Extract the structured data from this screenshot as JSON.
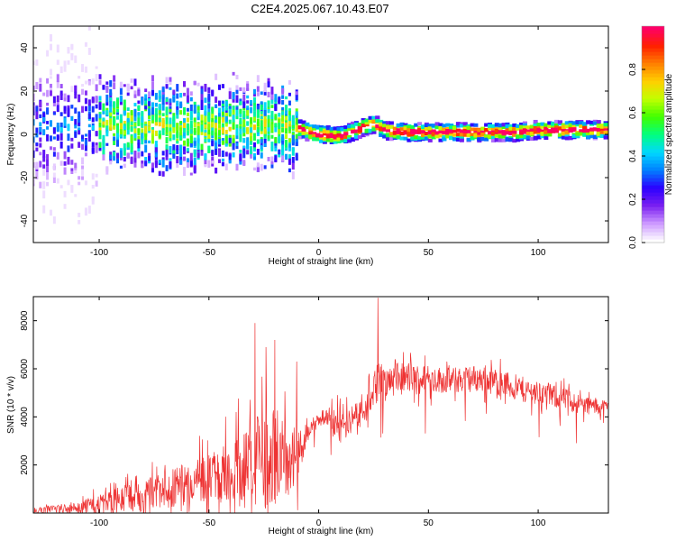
{
  "title": "C2E4.2025.067.10.43.E07",
  "chart_data": [
    {
      "type": "heatmap",
      "name": "spectrogram",
      "xlabel": "Height of straight line (km)",
      "ylabel": "Frequency (Hz)",
      "xlim": [
        -130,
        132
      ],
      "ylim": [
        -50,
        50
      ],
      "x_ticks": [
        -100,
        -50,
        0,
        50,
        100
      ],
      "y_ticks": [
        -40,
        -20,
        0,
        20,
        40
      ],
      "colorbar": {
        "label": "Normalized spectral amplitude",
        "range": [
          0,
          1
        ],
        "ticks": [
          0.0,
          0.2,
          0.4,
          0.6,
          0.8
        ],
        "colors": [
          "#ffffff",
          "#cc99ff",
          "#7a1ff0",
          "#2b00ff",
          "#0080ff",
          "#00d8ff",
          "#00ff80",
          "#40ff00",
          "#c0ff00",
          "#ffd000",
          "#ff8000",
          "#ff2000",
          "#ff0066"
        ]
      },
      "ridge": {
        "x": [
          -125,
          -100,
          -80,
          -60,
          -40,
          -20,
          -10,
          0,
          10,
          20,
          25,
          30,
          40,
          60,
          80,
          90,
          100,
          132
        ],
        "freq": [
          3,
          4,
          4,
          3,
          4,
          4,
          3,
          0,
          -1,
          3,
          5,
          2,
          1,
          1,
          1,
          1,
          2,
          2
        ]
      }
    },
    {
      "type": "line",
      "name": "snr",
      "xlabel": "Height of straight line (km)",
      "ylabel": "SNR (10 * v/v)",
      "xlim": [
        -130,
        132
      ],
      "ylim": [
        0,
        9000
      ],
      "x_ticks": [
        -100,
        -50,
        0,
        50,
        100
      ],
      "y_ticks": [
        2000,
        4000,
        6000,
        8000
      ],
      "color": "#ee3333",
      "envelope": {
        "x": [
          -130,
          -110,
          -100,
          -90,
          -80,
          -70,
          -60,
          -50,
          -40,
          -30,
          -20,
          -15,
          -10,
          -5,
          0,
          5,
          10,
          15,
          20,
          25,
          30,
          40,
          50,
          60,
          70,
          80,
          90,
          100,
          110,
          120,
          132
        ],
        "mean": [
          100,
          200,
          350,
          550,
          800,
          1000,
          1200,
          1450,
          1700,
          2000,
          2400,
          2200,
          2300,
          3400,
          3900,
          4000,
          3600,
          3900,
          4500,
          5200,
          5500,
          5600,
          5600,
          5500,
          5600,
          5500,
          5200,
          5000,
          4800,
          4500,
          4400
        ],
        "spread": [
          150,
          300,
          500,
          700,
          900,
          1000,
          1100,
          1300,
          1600,
          2500,
          2600,
          1800,
          1600,
          500,
          400,
          500,
          900,
          700,
          900,
          1300,
          900,
          800,
          700,
          700,
          700,
          700,
          700,
          600,
          600,
          500,
          400
        ]
      },
      "peaks": [
        {
          "x": 27,
          "y": 8950
        },
        {
          "x": -29,
          "y": 7900
        },
        {
          "x": -20,
          "y": 7200
        },
        {
          "x": -24,
          "y": 6900
        },
        {
          "x": -10,
          "y": 6300
        }
      ]
    }
  ]
}
